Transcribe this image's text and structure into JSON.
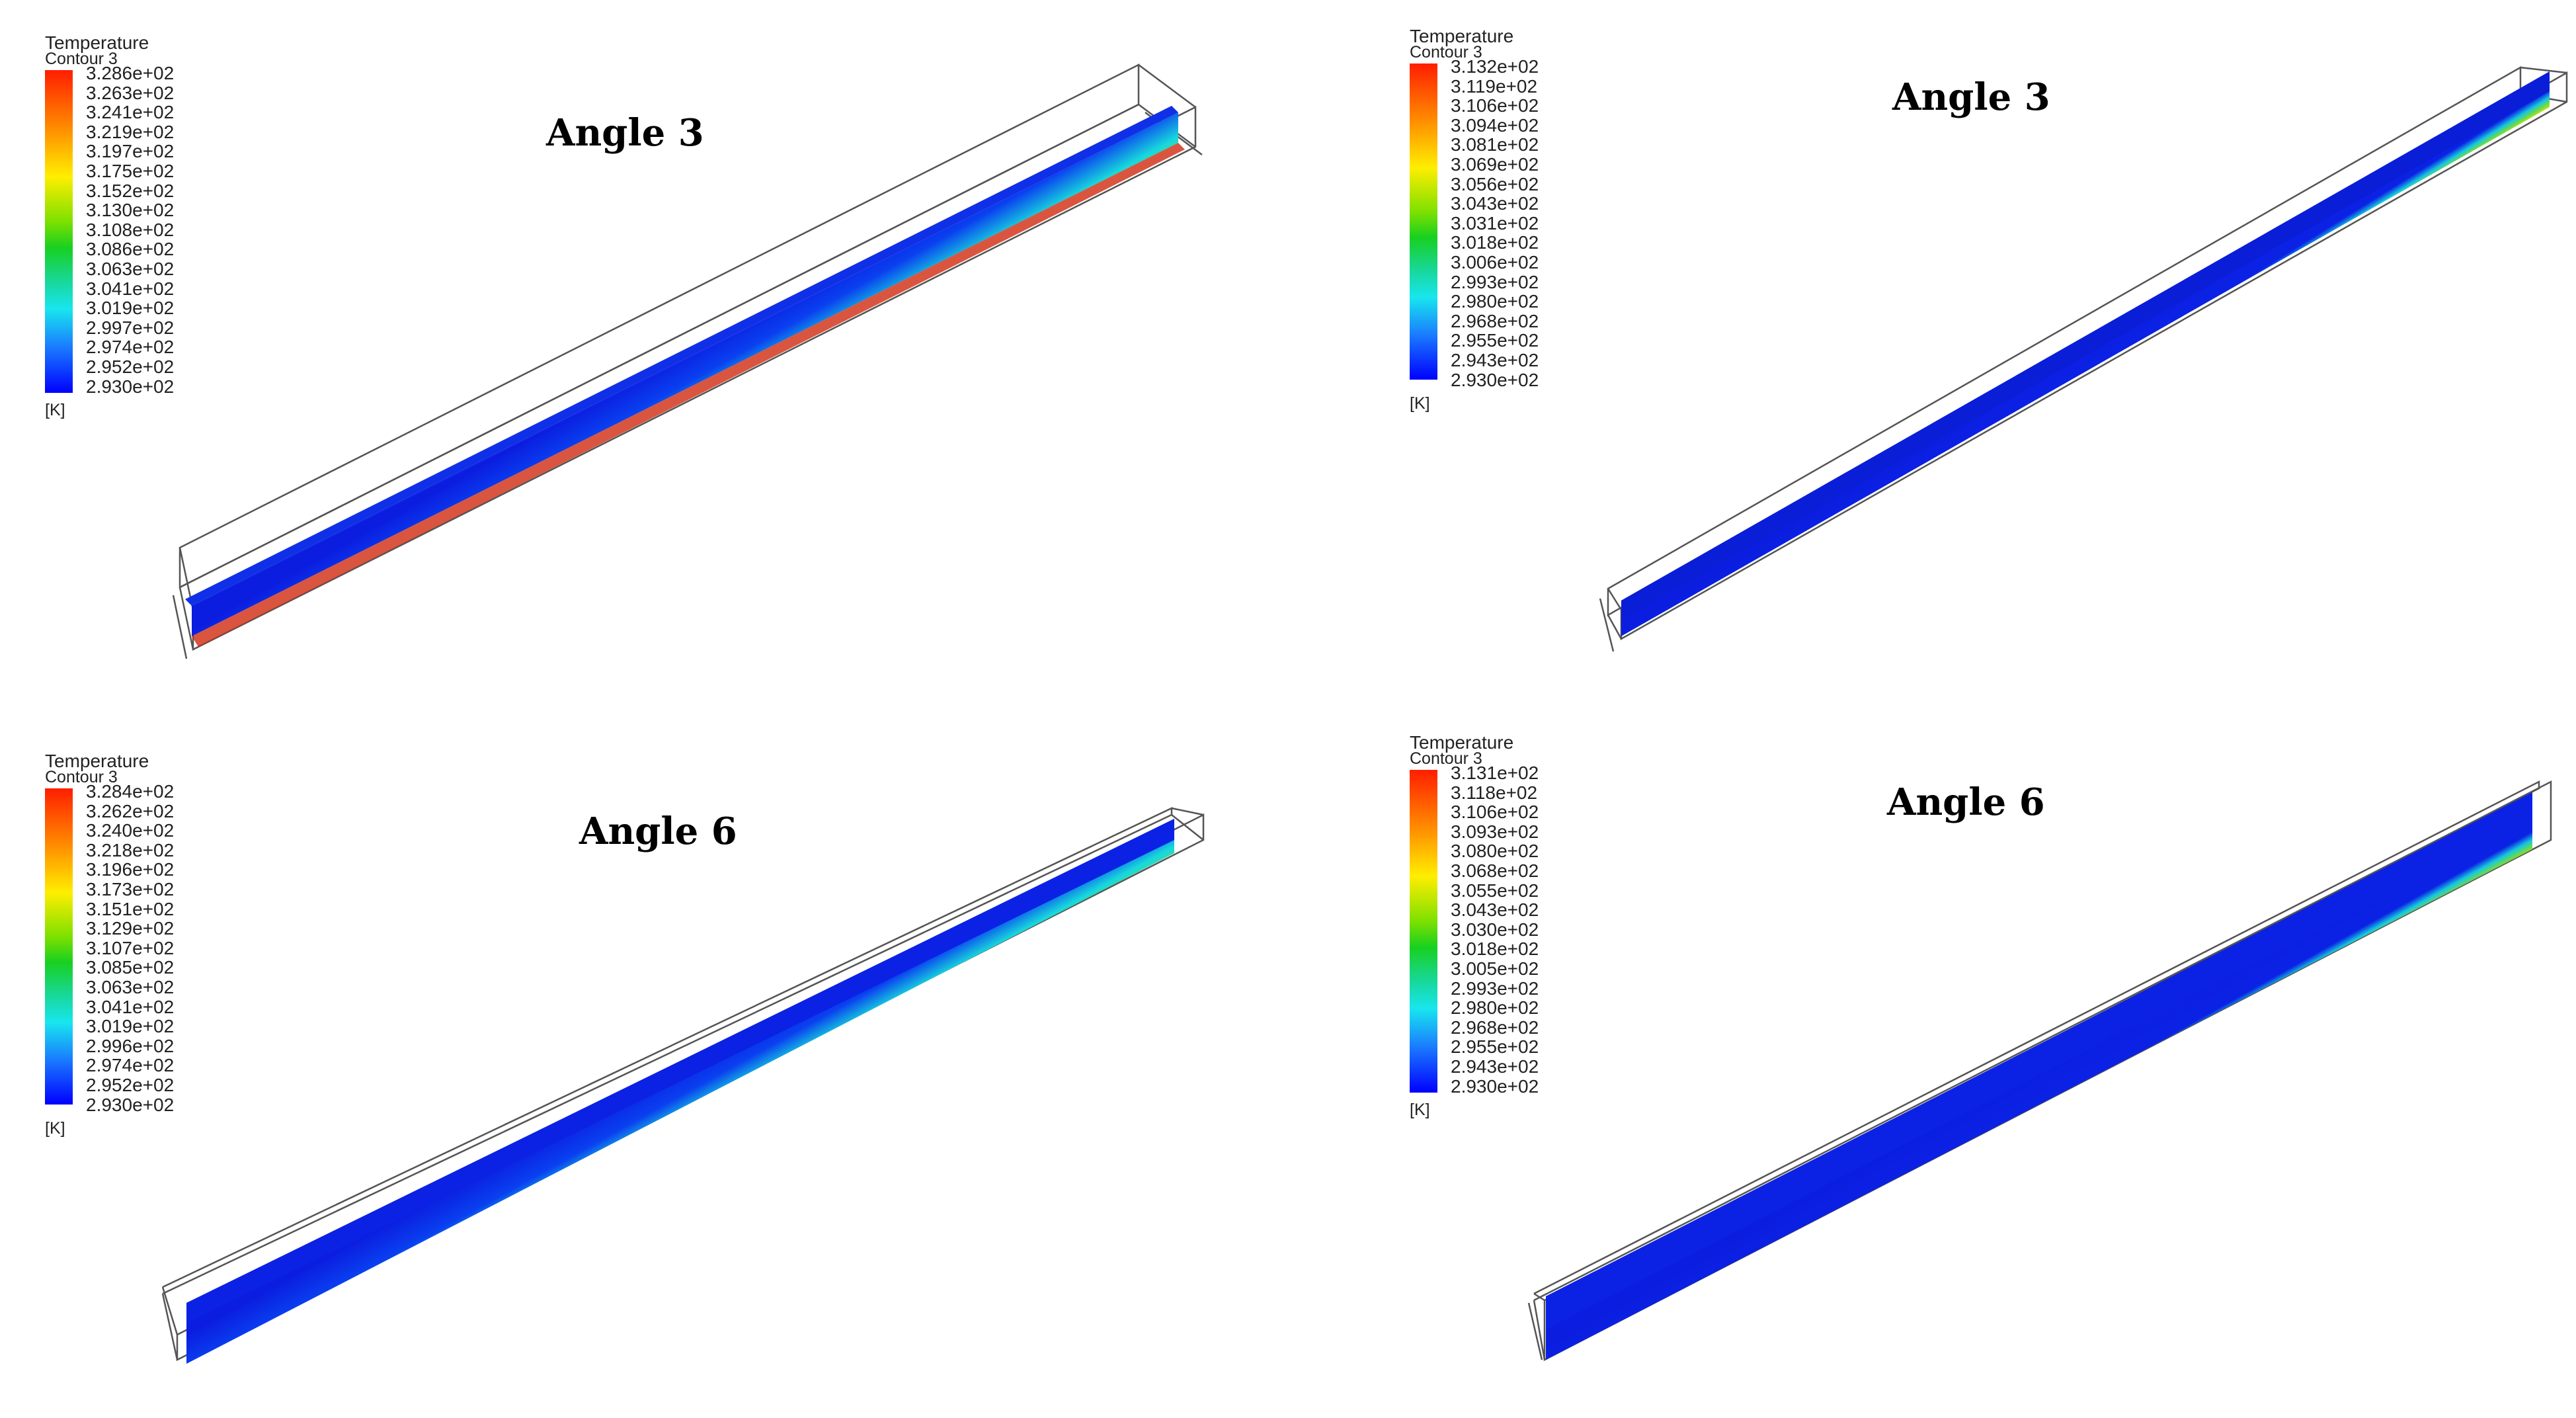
{
  "panels": [
    {
      "title": "Angle 3",
      "legend": {
        "heading": "Temperature",
        "subheading": "Contour 3",
        "unit": "[K]",
        "ticks": [
          "3.286e+02",
          "3.263e+02",
          "3.241e+02",
          "3.219e+02",
          "3.197e+02",
          "3.175e+02",
          "3.152e+02",
          "3.130e+02",
          "3.108e+02",
          "3.086e+02",
          "3.063e+02",
          "3.041e+02",
          "3.019e+02",
          "2.997e+02",
          "2.974e+02",
          "2.952e+02",
          "2.930e+02"
        ]
      },
      "colors": {
        "hot": "#ee2a10",
        "cold": "#0b1ee0"
      }
    },
    {
      "title": "Angle 3",
      "legend": {
        "heading": "Temperature",
        "subheading": "Contour 3",
        "unit": "[K]",
        "ticks": [
          "3.132e+02",
          "3.119e+02",
          "3.106e+02",
          "3.094e+02",
          "3.081e+02",
          "3.069e+02",
          "3.056e+02",
          "3.043e+02",
          "3.031e+02",
          "3.018e+02",
          "3.006e+02",
          "2.993e+02",
          "2.980e+02",
          "2.968e+02",
          "2.955e+02",
          "2.943e+02",
          "2.930e+02"
        ]
      },
      "colors": {
        "hot": "#ee2a10",
        "cold": "#0b1ee0"
      }
    },
    {
      "title": "Angle 6",
      "legend": {
        "heading": "Temperature",
        "subheading": "Contour 3",
        "unit": "[K]",
        "ticks": [
          "3.284e+02",
          "3.262e+02",
          "3.240e+02",
          "3.218e+02",
          "3.196e+02",
          "3.173e+02",
          "3.151e+02",
          "3.129e+02",
          "3.107e+02",
          "3.085e+02",
          "3.063e+02",
          "3.041e+02",
          "3.019e+02",
          "2.996e+02",
          "2.974e+02",
          "2.952e+02",
          "2.930e+02"
        ]
      },
      "colors": {
        "hot": "#ee2a10",
        "cold": "#0b1ee0"
      }
    },
    {
      "title": "Angle 6",
      "legend": {
        "heading": "Temperature",
        "subheading": "Contour 3",
        "unit": "[K]",
        "ticks": [
          "3.131e+02",
          "3.118e+02",
          "3.106e+02",
          "3.093e+02",
          "3.080e+02",
          "3.068e+02",
          "3.055e+02",
          "3.043e+02",
          "3.030e+02",
          "3.018e+02",
          "3.005e+02",
          "2.993e+02",
          "2.980e+02",
          "2.968e+02",
          "2.955e+02",
          "2.943e+02",
          "2.930e+02"
        ]
      },
      "colors": {
        "hot": "#ee2a10",
        "cold": "#0b1ee0"
      }
    }
  ]
}
